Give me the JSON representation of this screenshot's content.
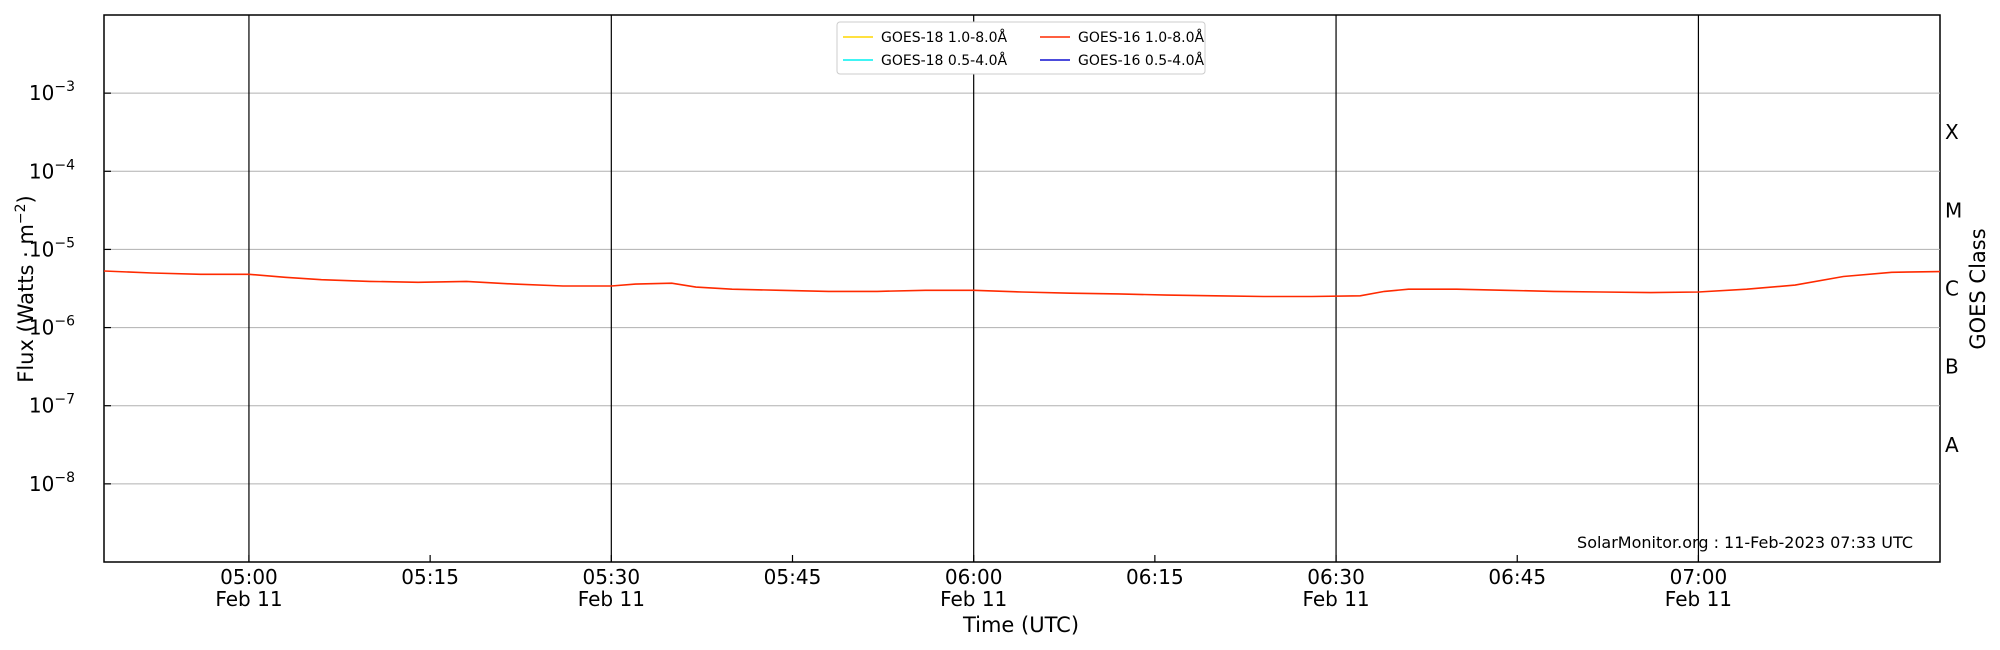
{
  "chart_data": {
    "type": "line",
    "xlabel": "Time (UTC)",
    "ylabel": "Flux (Watts · m",
    "ylabel_sup": "−2",
    "ylabel_close": ")",
    "right_axis_label": "GOES Class",
    "yscale": "log",
    "ylim": [
      1e-09,
      0.01
    ],
    "xlim": [
      "04:48",
      "07:20"
    ],
    "grid": "horizontal at each decade",
    "y_ticks": [
      {
        "base": "10",
        "exp": "−8",
        "value": 1e-08
      },
      {
        "base": "10",
        "exp": "−7",
        "value": 1e-07
      },
      {
        "base": "10",
        "exp": "−6",
        "value": 1e-06
      },
      {
        "base": "10",
        "exp": "−5",
        "value": 1e-05
      },
      {
        "base": "10",
        "exp": "−4",
        "value": 0.0001
      },
      {
        "base": "10",
        "exp": "−3",
        "value": 0.001
      }
    ],
    "x_ticks": [
      {
        "time": "05:00",
        "date": "Feb 11"
      },
      {
        "time": "05:15",
        "date": ""
      },
      {
        "time": "05:30",
        "date": "Feb 11"
      },
      {
        "time": "05:45",
        "date": ""
      },
      {
        "time": "06:00",
        "date": "Feb 11"
      },
      {
        "time": "06:15",
        "date": ""
      },
      {
        "time": "06:30",
        "date": "Feb 11"
      },
      {
        "time": "06:45",
        "date": ""
      },
      {
        "time": "07:00",
        "date": "Feb 11"
      }
    ],
    "vertical_lines": [
      "05:00",
      "05:30",
      "06:00",
      "06:30",
      "07:00"
    ],
    "goes_classes": [
      {
        "label": "A",
        "value": 3.16e-08
      },
      {
        "label": "B",
        "value": 3.16e-07
      },
      {
        "label": "C",
        "value": 3.16e-06
      },
      {
        "label": "M",
        "value": 3.16e-05
      },
      {
        "label": "X",
        "value": 0.000316
      }
    ],
    "legend_placement": "top-center",
    "credit": "SolarMonitor.org : 11-Feb-2023 07:33 UTC",
    "series": [
      {
        "name": "GOES-18 1.0-8.0Å",
        "color": "#FFD700",
        "points": []
      },
      {
        "name": "GOES-16 1.0-8.0Å",
        "color": "#FF2A00",
        "points": [
          [
            "04:48",
            5.3e-06
          ],
          [
            "04:52",
            5e-06
          ],
          [
            "04:56",
            4.8e-06
          ],
          [
            "05:00",
            4.8e-06
          ],
          [
            "05:03",
            4.4e-06
          ],
          [
            "05:06",
            4.1e-06
          ],
          [
            "05:10",
            3.9e-06
          ],
          [
            "05:14",
            3.8e-06
          ],
          [
            "05:18",
            3.9e-06
          ],
          [
            "05:22",
            3.6e-06
          ],
          [
            "05:26",
            3.4e-06
          ],
          [
            "05:30",
            3.4e-06
          ],
          [
            "05:32",
            3.6e-06
          ],
          [
            "05:35",
            3.7e-06
          ],
          [
            "05:37",
            3.3e-06
          ],
          [
            "05:40",
            3.1e-06
          ],
          [
            "05:44",
            3e-06
          ],
          [
            "05:48",
            2.9e-06
          ],
          [
            "05:52",
            2.9e-06
          ],
          [
            "05:56",
            3e-06
          ],
          [
            "06:00",
            3e-06
          ],
          [
            "06:04",
            2.85e-06
          ],
          [
            "06:08",
            2.75e-06
          ],
          [
            "06:12",
            2.7e-06
          ],
          [
            "06:16",
            2.6e-06
          ],
          [
            "06:20",
            2.55e-06
          ],
          [
            "06:24",
            2.5e-06
          ],
          [
            "06:28",
            2.5e-06
          ],
          [
            "06:32",
            2.55e-06
          ],
          [
            "06:34",
            2.9e-06
          ],
          [
            "06:36",
            3.1e-06
          ],
          [
            "06:40",
            3.1e-06
          ],
          [
            "06:44",
            3e-06
          ],
          [
            "06:48",
            2.9e-06
          ],
          [
            "06:52",
            2.85e-06
          ],
          [
            "06:56",
            2.8e-06
          ],
          [
            "07:00",
            2.85e-06
          ],
          [
            "07:04",
            3.1e-06
          ],
          [
            "07:08",
            3.5e-06
          ],
          [
            "07:12",
            4.5e-06
          ],
          [
            "07:16",
            5.1e-06
          ],
          [
            "07:20",
            5.2e-06
          ]
        ]
      },
      {
        "name": "GOES-18 0.5-4.0Å",
        "color": "#00F0F0",
        "points": []
      },
      {
        "name": "GOES-16 0.5-4.0Å",
        "color": "#1010D0",
        "points": []
      }
    ]
  }
}
